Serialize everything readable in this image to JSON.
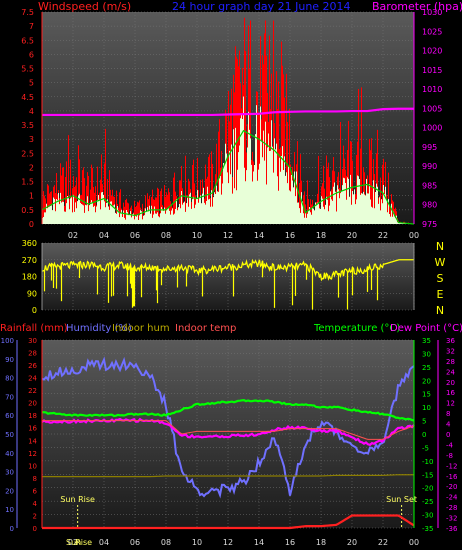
{
  "colors": {
    "wind_axis": "#ff2020",
    "gust_series": "#ff0000",
    "avg_series": "#e8ffd8",
    "avg_outline": "#00cc00",
    "barometer": "#ff00ff",
    "title": "#2020ff",
    "direction": "#ffff00",
    "humidity": "#7070ff",
    "rain": "#ff2020",
    "indoor_hum": "#8b7d00",
    "indoor_temp": "#ff5050",
    "temperature": "#00ff00",
    "dew_point": "#ff00ff",
    "bg_top": "#5a5a5a",
    "bg_bottom": "#1a1a1a"
  },
  "chart_data": [
    {
      "type": "area",
      "title": "24 hour graph day  21 June 2014",
      "ylabel": "Windspeed (m/s)",
      "y2label": "Barometer (hpa)",
      "ylim": [
        0,
        7.5
      ],
      "y2lim": [
        975,
        1030
      ],
      "yticks": [
        "0",
        "0.5",
        "1",
        "1.5",
        "2",
        "2.5",
        "3",
        "3.5",
        "4",
        "4.5",
        "5",
        "5.5",
        "6",
        "6.5",
        "7",
        "7.5"
      ],
      "y2ticks": [
        "975",
        "980",
        "985",
        "990",
        "995",
        "1000",
        "1005",
        "1010",
        "1015",
        "1020",
        "1025",
        "1030"
      ],
      "xticks": [
        "02",
        "04",
        "06",
        "08",
        "10",
        "12",
        "14",
        "16",
        "18",
        "20",
        "22",
        "00"
      ],
      "x": [
        0,
        1,
        2,
        3,
        4,
        5,
        6,
        7,
        8,
        9,
        10,
        11,
        12,
        13,
        14,
        15,
        16,
        17,
        18,
        19,
        20,
        21,
        22,
        23,
        24
      ],
      "series": [
        {
          "values": [
            1.0,
            1.5,
            1.8,
            1.5,
            1.6,
            0.9,
            0.6,
            0.9,
            1.0,
            1.8,
            1.7,
            1.9,
            4.0,
            5.6,
            5.0,
            4.6,
            3.6,
            0.8,
            1.4,
            2.0,
            2.2,
            2.3,
            1.9,
            0.1,
            0.0
          ]
        },
        {
          "values": [
            0.5,
            0.8,
            1.0,
            0.7,
            0.9,
            0.4,
            0.3,
            0.5,
            0.5,
            1.0,
            0.9,
            1.1,
            2.4,
            3.3,
            3.0,
            2.6,
            2.0,
            0.4,
            0.8,
            1.1,
            1.3,
            1.4,
            1.1,
            0.05,
            0.0
          ]
        },
        {
          "values": [
            1003.3,
            1003.3,
            1003.3,
            1003.3,
            1003.3,
            1003.3,
            1003.3,
            1003.3,
            1003.3,
            1003.3,
            1003.3,
            1003.3,
            1003.4,
            1003.5,
            1003.6,
            1004.0,
            1004.1,
            1004.2,
            1004.2,
            1004.2,
            1004.3,
            1004.3,
            1004.8,
            1004.9,
            1004.9
          ]
        }
      ]
    },
    {
      "type": "line",
      "ylim": [
        0,
        360
      ],
      "yticks": [
        "0",
        "90",
        "180",
        "270",
        "360"
      ],
      "compass": [
        "N",
        "W",
        "S",
        "E",
        "N"
      ],
      "x": [
        0,
        1,
        2,
        3,
        4,
        5,
        6,
        7,
        8,
        9,
        10,
        11,
        12,
        13,
        14,
        15,
        16,
        17,
        18,
        19,
        20,
        21,
        22,
        23,
        24
      ],
      "series": [
        {
          "values": [
            225,
            235,
            240,
            245,
            230,
            240,
            225,
            230,
            220,
            230,
            210,
            220,
            230,
            240,
            250,
            225,
            230,
            240,
            180,
            190,
            210,
            220,
            245,
            270,
            270
          ]
        }
      ]
    },
    {
      "type": "line",
      "xticks": [
        "02",
        "04",
        "06",
        "08",
        "10",
        "12",
        "14",
        "16",
        "18",
        "20",
        "22",
        "00"
      ],
      "x": [
        0,
        1,
        2,
        3,
        4,
        5,
        6,
        7,
        8,
        9,
        10,
        11,
        12,
        13,
        14,
        15,
        16,
        17,
        18,
        19,
        20,
        21,
        22,
        23,
        24
      ],
      "labels": {
        "rain": "Rainfall (mm)",
        "humidity": "Humidity (%)",
        "indoor_hum": "Indoor hum",
        "indoor_temp": "Indoor temp",
        "temperature": "Temperature (°C)",
        "dew_point": "Dew Point (°C)"
      },
      "axes": {
        "humidity": {
          "ylim": [
            0,
            100
          ],
          "ticks": [
            "0",
            "10",
            "20",
            "30",
            "40",
            "50",
            "60",
            "70",
            "80",
            "90",
            "100"
          ]
        },
        "rain": {
          "ylim": [
            0,
            30
          ],
          "ticks": [
            "0",
            "2",
            "4",
            "6",
            "8",
            "10",
            "12",
            "14",
            "16",
            "18",
            "20",
            "22",
            "24",
            "26",
            "28",
            "30"
          ]
        },
        "temperature": {
          "ylim": [
            -35,
            35
          ],
          "ticks": [
            "-35",
            "-30",
            "-25",
            "-20",
            "-15",
            "-10",
            "-5",
            "0",
            "5",
            "10",
            "15",
            "20",
            "25",
            "30",
            "35"
          ]
        },
        "dew_point": {
          "ylim": [
            -36,
            36
          ],
          "ticks": [
            "-36",
            "-32",
            "-28",
            "-24",
            "-20",
            "-16",
            "-12",
            "-8",
            "-4",
            "0",
            "4",
            "8",
            "12",
            "16",
            "20",
            "24",
            "28",
            "32",
            "36"
          ]
        }
      },
      "sun": {
        "rise_label": "Sun Rise",
        "set_label": "Sun Set",
        "rise_x": 2.3,
        "set_x": 23.2
      },
      "overlap_ticks": [
        "Sun",
        "Rise"
      ],
      "series": [
        {
          "key": "humidity",
          "values": [
            81,
            83,
            84,
            86,
            87,
            87,
            87,
            80,
            65,
            30,
            20,
            20,
            20,
            25,
            35,
            50,
            18,
            45,
            57,
            50,
            45,
            40,
            44,
            75,
            88
          ]
        },
        {
          "key": "temperature",
          "values": [
            8,
            7.5,
            7,
            7,
            7,
            7,
            7.4,
            7.4,
            7,
            9,
            11,
            11.5,
            12,
            12.3,
            12.5,
            12,
            11,
            11,
            10,
            10,
            9,
            8,
            7.5,
            6,
            5
          ]
        },
        {
          "key": "dew_point",
          "values": [
            4.8,
            4.8,
            4.9,
            5,
            5,
            5.2,
            5.2,
            5.2,
            4.2,
            -0.5,
            -1,
            -1,
            -0.8,
            -0.5,
            -0.3,
            1.6,
            2.5,
            2.4,
            1,
            1.2,
            -1.2,
            -4,
            -2.4,
            2,
            3
          ]
        },
        {
          "key": "indoor_hum",
          "values": [
            8.2,
            8.2,
            8.2,
            8.2,
            8.2,
            8.2,
            8.2,
            8.2,
            8.3,
            8.3,
            8.3,
            8.3,
            8.3,
            8.3,
            8.3,
            8.3,
            8.3,
            8.3,
            8.3,
            8.4,
            8.4,
            8.4,
            8.4,
            8.5,
            8.5
          ]
        },
        {
          "key": "indoor_temp",
          "values": [
            5,
            5,
            5,
            5,
            5,
            5,
            5,
            5,
            5,
            0,
            1,
            1,
            1,
            1,
            1,
            1,
            2,
            2,
            2,
            2,
            0,
            -2,
            -2,
            1,
            3
          ]
        },
        {
          "key": "rain",
          "values": [
            0,
            0,
            0,
            0,
            0,
            0,
            0,
            0,
            0,
            0,
            0,
            0,
            0,
            0,
            0,
            0,
            0,
            0.3,
            0.3,
            0.5,
            2.0,
            2.0,
            2.0,
            2.0,
            0.4
          ]
        }
      ]
    }
  ]
}
